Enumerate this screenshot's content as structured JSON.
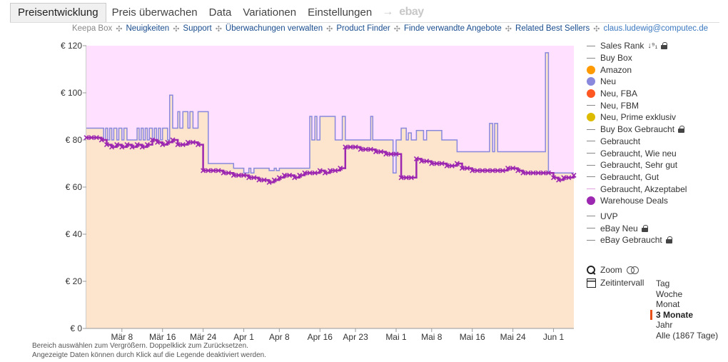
{
  "tabs": [
    {
      "label": "Preisentwicklung",
      "active": true
    },
    {
      "label": "Preis überwachen"
    },
    {
      "label": "Data"
    },
    {
      "label": "Variationen"
    },
    {
      "label": "Einstellungen"
    }
  ],
  "tab_arrow": "→",
  "tab_ebay": "ebay",
  "subnav": {
    "brand": "Keepa Box",
    "links": [
      "Neuigkeiten",
      "Support",
      "Überwachungen verwalten",
      "Product Finder",
      "Finde verwandte Angebote",
      "Related Best Sellers"
    ],
    "separator": "✣",
    "user": "claus.ludewig@computec.de"
  },
  "legend": [
    {
      "label": "Sales Rank",
      "type": "line",
      "color": "#888888",
      "sort_icon": "↓⁹₁",
      "locked": true
    },
    {
      "label": "Buy Box",
      "type": "line",
      "color": "#888888"
    },
    {
      "label": "Amazon",
      "type": "dot",
      "color": "#ff9900"
    },
    {
      "label": "Neu",
      "type": "dot",
      "color": "#8888dd"
    },
    {
      "label": "Neu, FBA",
      "type": "dot",
      "color": "#ff5722"
    },
    {
      "label": "Neu, FBM",
      "type": "line",
      "color": "#888888"
    },
    {
      "label": "Neu, Prime exklusiv",
      "type": "dot",
      "color": "#ddbb00"
    },
    {
      "label": "Buy Box Gebraucht",
      "type": "line",
      "color": "#888888",
      "locked": true
    },
    {
      "label": "Gebraucht",
      "type": "line",
      "color": "#888888"
    },
    {
      "label": "Gebraucht, Wie neu",
      "type": "line",
      "color": "#888888"
    },
    {
      "label": "Gebraucht, Sehr gut",
      "type": "line",
      "color": "#888888"
    },
    {
      "label": "Gebraucht, Gut",
      "type": "line",
      "color": "#888888"
    },
    {
      "label": "Gebraucht, Akzeptabel",
      "type": "line",
      "color": "#e0a0e0"
    },
    {
      "label": "Warehouse Deals",
      "type": "dot",
      "color": "#9c27b0"
    },
    {
      "label": "UVP",
      "type": "line",
      "color": "#888888",
      "gap_before": true
    },
    {
      "label": "eBay Neu",
      "type": "line",
      "color": "#888888",
      "locked": true
    },
    {
      "label": "eBay Gebraucht",
      "type": "line",
      "color": "#888888",
      "locked": true
    }
  ],
  "tools": {
    "zoom_label": "Zoom",
    "interval_label": "Zeitintervall",
    "intervals": [
      {
        "label": "Tag"
      },
      {
        "label": "Woche"
      },
      {
        "label": "Monat"
      },
      {
        "label": "3 Monate",
        "active": true
      },
      {
        "label": "Jahr"
      },
      {
        "label": "Alle (1867 Tage)"
      }
    ]
  },
  "footnote": {
    "line1": "Bereich auswählen zum Vergrößern. Doppelklick zum Zurücksetzen.",
    "line2": "Angezeigte Daten können durch Klick auf die Legende deaktiviert werden."
  },
  "chart_data": {
    "type": "line",
    "x_tick_labels": [
      "Mär 8",
      "Mär 16",
      "Mär 24",
      "Apr 1",
      "Apr 8",
      "Apr 16",
      "Apr 23",
      "Mai 1",
      "Mai 8",
      "Mai 16",
      "Mai 24",
      "Jun 1"
    ],
    "x_tick_day": [
      8,
      16,
      24,
      32,
      39,
      47,
      54,
      62,
      69,
      77,
      85,
      93
    ],
    "x_range_day": [
      1,
      97
    ],
    "y_tick_labels": [
      "€ 0",
      "€ 20",
      "€ 40",
      "€ 60",
      "€ 80",
      "€ 100",
      "€ 120"
    ],
    "ylim": [
      0,
      120
    ],
    "grid": false,
    "legend_position": "right",
    "colors": {
      "neu_line": "#8888dd",
      "neu_fill": "#fde4cc",
      "warehouse": "#9c27b0",
      "plot_bg": "#ffe0ff"
    },
    "series": [
      {
        "name": "Neu",
        "x": [
          1,
          4,
          4.4,
          4.8,
          5.2,
          5.6,
          6,
          6.4,
          7,
          7.4,
          8,
          8.4,
          9,
          11,
          11.4,
          11.8,
          12.2,
          12.6,
          13,
          13.4,
          14,
          14.4,
          14.8,
          15.2,
          15.6,
          16,
          17,
          17.4,
          18,
          19,
          19.4,
          20,
          21,
          21.4,
          22,
          23,
          25,
          30,
          30.4,
          31,
          32,
          33,
          33.4,
          34,
          37,
          38,
          38.4,
          39,
          43,
          44,
          45,
          45.4,
          46,
          46.4,
          47,
          50,
          51,
          51.4,
          52,
          56,
          57,
          57.4,
          58,
          60,
          61,
          61.4,
          62,
          63,
          64,
          64.4,
          65,
          66,
          67,
          67.4,
          68,
          71,
          72,
          74,
          77,
          80,
          80.4,
          81,
          81.4,
          82,
          84,
          85,
          91,
          91.4,
          92,
          93,
          93.4,
          94,
          95,
          97
        ],
        "y": [
          85,
          85,
          80,
          85,
          80,
          85,
          80,
          85,
          80,
          85,
          80,
          85,
          80,
          85,
          80,
          85,
          80,
          85,
          80,
          85,
          80,
          85,
          80,
          85,
          80,
          85,
          80,
          99,
          85,
          92,
          85,
          92,
          85,
          92,
          85,
          92,
          70,
          68,
          68,
          68,
          66,
          68,
          66,
          68,
          67,
          68,
          67,
          68,
          68,
          68,
          90,
          80,
          90,
          80,
          90,
          80,
          80,
          90,
          80,
          80,
          90,
          80,
          80,
          80,
          80,
          66,
          80,
          85,
          80,
          83,
          80,
          84,
          84,
          80,
          84,
          80,
          80,
          75,
          75,
          75,
          87,
          75,
          87,
          75,
          75,
          75,
          75,
          117,
          66,
          66,
          66,
          66,
          66,
          66
        ]
      },
      {
        "name": "Warehouse Deals",
        "x": [
          1,
          2,
          3,
          4,
          5,
          6,
          7,
          8,
          9,
          10,
          11,
          12,
          13,
          14,
          15,
          16,
          17,
          18,
          19,
          20,
          21,
          22,
          23,
          24,
          25,
          26,
          27,
          28,
          29,
          30,
          31,
          32,
          33,
          34,
          35,
          36,
          37,
          38,
          39,
          40,
          41,
          42,
          43,
          44,
          45,
          46,
          47,
          48,
          49,
          50,
          51,
          52,
          53,
          54,
          55,
          56,
          57,
          58,
          59,
          60,
          61,
          62,
          63,
          64,
          65,
          66,
          67,
          68,
          69,
          70,
          71,
          72,
          73,
          74,
          75,
          76,
          77,
          78,
          79,
          80,
          81,
          82,
          83,
          84,
          85,
          86,
          87,
          88,
          89,
          90,
          91,
          92,
          93,
          94,
          95,
          96,
          97
        ],
        "y": [
          81,
          81,
          81,
          80,
          78,
          77,
          78,
          77,
          78,
          77,
          78,
          77,
          78,
          80,
          79,
          78,
          79,
          80,
          78,
          78,
          79,
          79,
          78,
          67,
          67,
          67,
          67,
          66,
          66,
          65,
          65,
          65,
          64,
          64,
          63,
          63,
          62,
          63,
          64,
          65,
          65,
          64,
          65,
          66,
          66,
          66,
          67,
          66,
          67,
          67,
          68,
          77,
          77,
          77,
          76,
          76,
          76,
          75,
          75,
          74,
          74,
          74,
          64,
          64,
          64,
          72,
          71,
          71,
          70,
          70,
          70,
          69,
          69,
          70,
          68,
          68,
          67,
          67,
          67,
          67,
          67,
          67,
          67,
          68,
          68,
          67,
          66,
          66,
          66,
          66,
          66,
          66,
          64,
          63,
          64,
          64,
          65
        ]
      }
    ]
  }
}
